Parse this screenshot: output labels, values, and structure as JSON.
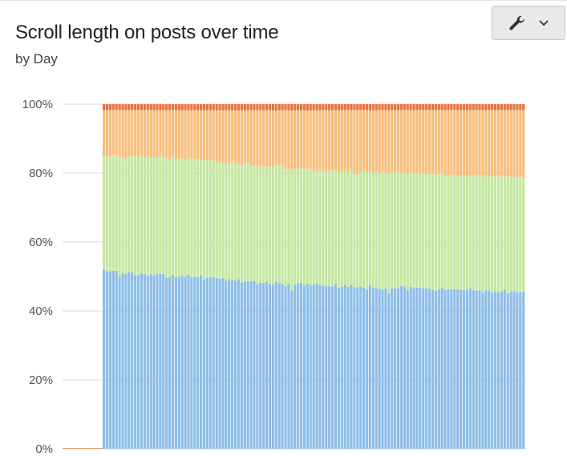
{
  "header": {
    "title": "Scroll length on posts over time",
    "subtitle": "by Day"
  },
  "toolbar": {
    "settings_icon": "wrench-icon",
    "dropdown_icon": "chevron-down-icon"
  },
  "chart_data": {
    "type": "bar",
    "stacked": true,
    "percent_stacked": true,
    "title": "Scroll length on posts over time",
    "subtitle": "by Day",
    "xlabel": "",
    "ylabel": "",
    "ylim": [
      0,
      100
    ],
    "y_ticks": [
      "0%",
      "20%",
      "40%",
      "60%",
      "80%",
      "100%"
    ],
    "grid": "horizontal",
    "legend": "none",
    "n_days": 150,
    "leading_empty_days": 15,
    "series_colors": [
      "#8ebde8",
      "#c3e8a1",
      "#f9bd7b",
      "#e8713f"
    ],
    "series": [
      {
        "color": "#8ebde8",
        "profile_day": [
          15,
          18,
          25,
          30,
          40,
          50,
          60,
          70,
          80,
          90,
          100,
          110,
          120,
          130,
          140,
          149
        ],
        "profile_pct": [
          52,
          51,
          50,
          50.5,
          49,
          48.5,
          47.5,
          47,
          46.5,
          46.5,
          46,
          46,
          45.5,
          46,
          45.5,
          45.5
        ]
      },
      {
        "color": "#c3e8a1",
        "profile_day": [
          15,
          20,
          30,
          40,
          50,
          60,
          70,
          80,
          90,
          100,
          110,
          120,
          130,
          140,
          149
        ],
        "profile_pct": [
          32.5,
          33.5,
          34,
          33.5,
          33,
          33,
          33,
          32.5,
          32.5,
          33,
          33,
          33,
          33,
          33.5,
          33
        ]
      },
      {
        "color": "#f9bd7b",
        "profile_day": [
          15,
          30,
          50,
          70,
          90,
          110,
          130,
          149
        ],
        "profile_pct": [
          13.5,
          13.5,
          14.5,
          16,
          17.5,
          18,
          18.5,
          19
        ]
      },
      {
        "color": "#e8713f",
        "profile_day": [
          15,
          149
        ],
        "profile_pct": [
          1.7,
          1.7
        ]
      }
    ]
  }
}
